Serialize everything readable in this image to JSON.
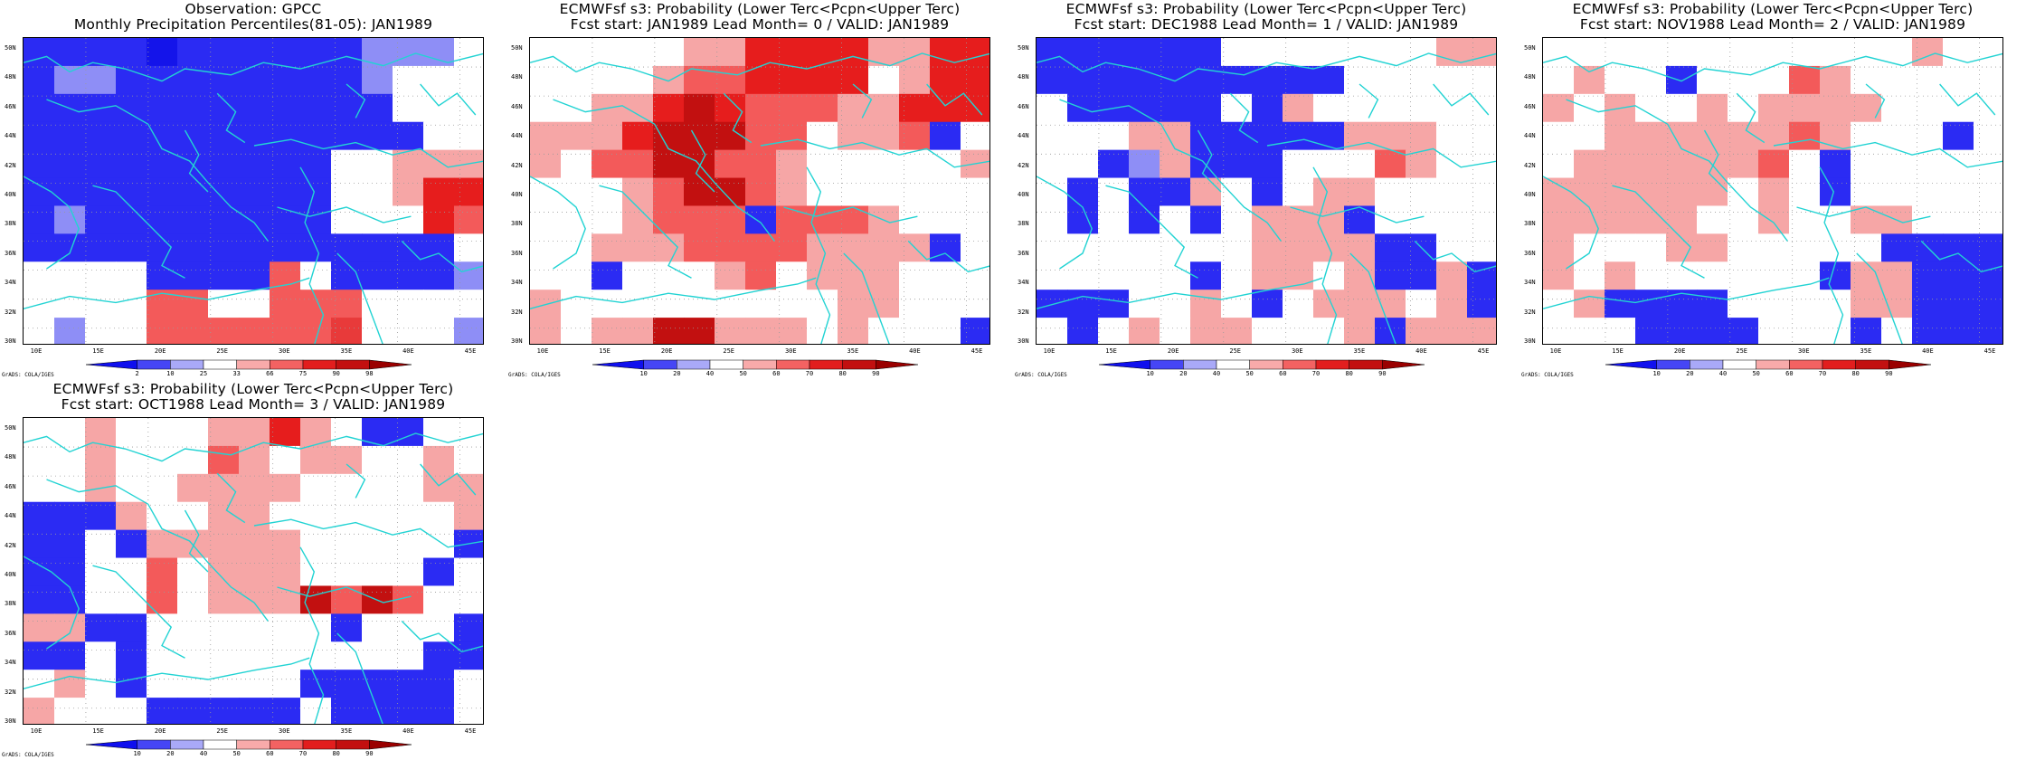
{
  "panels": [
    {
      "id": "obs",
      "title1": "Observation: GPCC",
      "title2": "Monthly Precipitation Percentiles(81-05): JAN1989",
      "colorbar_labels": [
        "2",
        "10",
        "25",
        "33",
        "66",
        "75",
        "90",
        "98"
      ],
      "grid": [
        "11113111111222W",
        "122111111112WWW",
        "111111111111WWW",
        "1111111111111WW",
        "1111111111WWaaa",
        "1111111111WWaBB",
        "1211111111WWWBb",
        "11111111111111W",
        "WWWW1111bW11112",
        "WWWWbbWWbbbWWWW",
        "W2WWbbbbbbcWWW2"
      ]
    },
    {
      "id": "lead0",
      "title1": "ECMWFsf s3: Probability (Lower Terc<Pcpn<Upper Terc)",
      "title2": "Fcst start: JAN1989  Lead Month= 0 / VALID: JAN1989",
      "colorbar_labels": [
        "10",
        "20",
        "40",
        "50",
        "60",
        "70",
        "80",
        "90"
      ],
      "grid": [
        "WWWWWaaBBBBaaBB",
        "WWWWabbBBBBWaBB",
        "WWaaBCBbbbaaBBB",
        "aaaBCCCbbWaab1W",
        "aWbbCCbbaWWWWWa",
        "WWWabCCbaWWWWWW",
        "WWWabbb1bbbaWWW",
        "WWaaabbbbaaaa1W",
        "WW1WWWabWaaaWWW",
        "aWWWWWWWWWaaWWW",
        "aWaaCCaaaWaWWW1"
      ]
    },
    {
      "id": "lead1",
      "title1": "ECMWFsf s3: Probability (Lower Terc<Pcpn<Upper Terc)",
      "title2": "Fcst start: DEC1988  Lead Month= 1 / VALID: JAN1989",
      "colorbar_labels": [
        "10",
        "20",
        "40",
        "50",
        "60",
        "70",
        "80",
        "90"
      ],
      "grid": [
        "111111WWWWWWWaa",
        "1111111111WWWWW",
        "W11111W1aWWWWWW",
        "WWWaa11111aaaWW",
        "WW12a111WWWbaWW",
        "W1W11aW1WaaWWWW",
        "W1W1W1Waaa1WWWW",
        "WWWWWWWaaaa11WW",
        "WWWWW1WaaWa11a1",
        "111WWaW1WaaaWa1",
        "W1WaWaaWWWa1aaa"
      ]
    },
    {
      "id": "lead2",
      "title1": "ECMWFsf s3: Probability (Lower Terc<Pcpn<Upper Terc)",
      "title2": "Fcst start: NOV1988  Lead Month= 2 / VALID: JAN1989",
      "colorbar_labels": [
        "10",
        "20",
        "40",
        "50",
        "60",
        "70",
        "80",
        "90"
      ],
      "grid": [
        "WWWWWWWWWWWWaWW",
        "WaWW1WWWbaWWWWW",
        "aWaWWaWaaaaWWWW",
        "WWaaaaaabaWWW1W",
        "WaaaaaabW1WWWWW",
        "aaaaaaWaW1WWWWW",
        "aaaaaWWaWWaaWWW",
        "aWWWaaWWWWW1111",
        "aWaWWWWWW1aa111",
        "Wa1111WWWWaa111",
        "WWW1111WWW1W111"
      ]
    },
    {
      "id": "lead3",
      "title1": "ECMWFsf s3: Probability (Lower Terc<Pcpn<Upper Terc)",
      "title2": "Fcst start: OCT1988  Lead Month= 3 / VALID: JAN1989",
      "colorbar_labels": [
        "10",
        "20",
        "40",
        "50",
        "60",
        "70",
        "80",
        "90"
      ],
      "grid": [
        "WWaWWWaaBaW11WW",
        "WWaWWWbaWaaWWaW",
        "WWaWWaaaaWWWWaa",
        "111aWWaaWWWWWWa",
        "11W1aaaaaWWWWW1",
        "11WWbWaaaWWWW1W",
        "11WWbWaaaCbCbWW",
        "aa11WWWWWW1WWW1",
        "11W1WWWWWWWWW11",
        "WaW1WWWWW11111W",
        "aWWW11111W1111W"
      ]
    }
  ],
  "axis": {
    "lat_labels": [
      "30N",
      "32N",
      "34N",
      "36N",
      "38N",
      "40N",
      "42N",
      "44N",
      "46N",
      "48N",
      "50N"
    ],
    "lon_labels": [
      "10E",
      "15E",
      "20E",
      "25E",
      "30E",
      "35E",
      "40E",
      "45E"
    ]
  },
  "credit": "GrADS: COLA/IGES",
  "palette": {
    "1": "#2b2bf3",
    "2": "#8e8ef6",
    "3": "#1414ea",
    "W": "#ffffff",
    "a": "#f6a6a6",
    "b": "#f35a5a",
    "B": "#e61d1d",
    "c": "#e83a3a",
    "C": "#c21010"
  },
  "colorbar_colors": [
    "#1010ee",
    "#4646f5",
    "#a9a9f8",
    "#ffffff",
    "#f8aaaa",
    "#f36262",
    "#e21e1e",
    "#c21010",
    "#9a0000"
  ],
  "coastline_color": "#22d3d3"
}
